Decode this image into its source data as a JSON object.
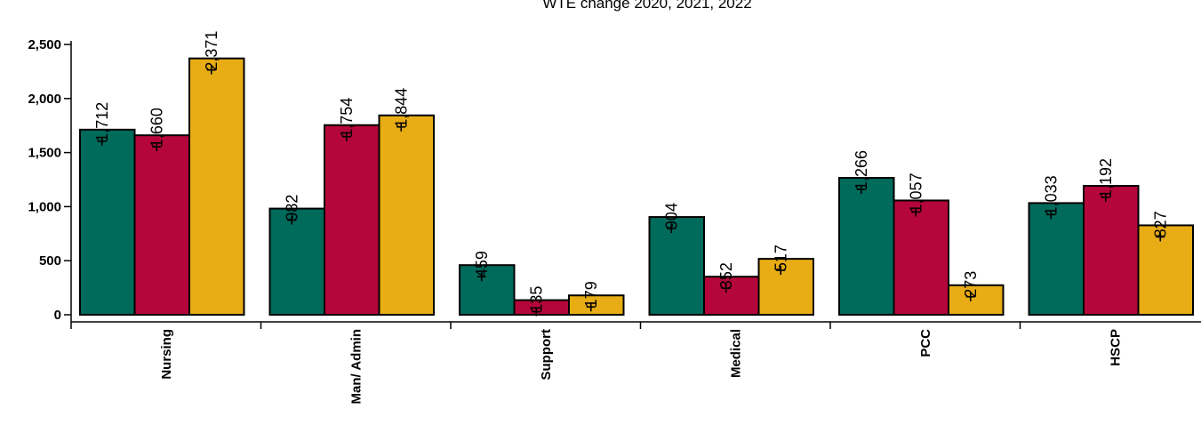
{
  "chart_data": {
    "type": "bar",
    "title": "WTE change 2020, 2021, 2022",
    "categories": [
      "Nursing",
      "Man/ Admin",
      "Support",
      "Medical",
      "PCC",
      "HSCP"
    ],
    "series": [
      {
        "color": "#006a5b",
        "values": [
          1712,
          982,
          459,
          904,
          1266,
          1033
        ],
        "labels": [
          "1,712",
          "982",
          "459",
          "904",
          "1,266",
          "1,033"
        ]
      },
      {
        "color": "#b5063b",
        "values": [
          1660,
          1754,
          135,
          352,
          1057,
          1192
        ],
        "labels": [
          "1,660",
          "1,754",
          "135",
          "352",
          "1,057",
          "1,192"
        ]
      },
      {
        "color": "#e8ac15",
        "values": [
          2371,
          1844,
          179,
          517,
          273,
          827
        ],
        "labels": [
          "2,371",
          "1,844",
          "179",
          "517",
          "273",
          "827"
        ]
      }
    ],
    "yticks": [
      0,
      500,
      1000,
      1500,
      2000,
      2500
    ],
    "ytick_labels": [
      "0",
      "500",
      "1,000",
      "1,500",
      "2,000",
      "2,500"
    ],
    "ylim": [
      0,
      2600
    ],
    "xlabel": "",
    "ylabel": "",
    "grid": false,
    "legend": "none"
  }
}
